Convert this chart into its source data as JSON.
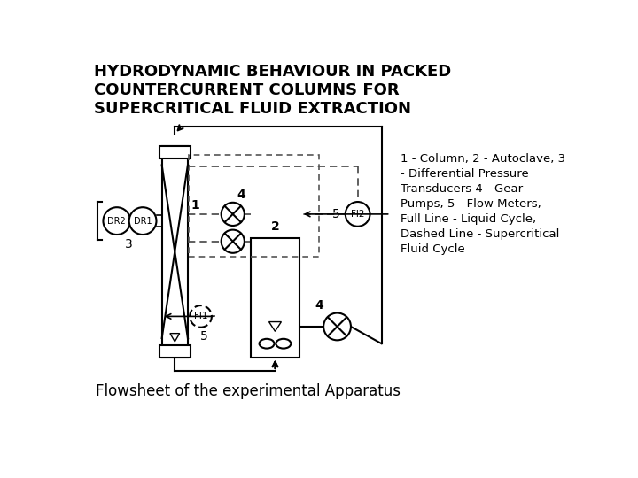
{
  "title": "HYDRODYNAMIC BEHAVIOUR IN PACKED\nCOUNTERCURRENT COLUMNS FOR\nSUPERCRITICAL FLUID EXTRACTION",
  "subtitle": "Flowsheet of the experimental Apparatus",
  "legend_text": "1 - Column, 2 - Autoclave, 3\n- Differential Pressure\nTransducers 4 - Gear\nPumps, 5 - Flow Meters,\nFull Line - Liquid Cycle,\nDashed Line - Supercritical\nFluid Cycle",
  "bg_color": "#ffffff",
  "line_color": "#000000",
  "title_fontsize": 13,
  "subtitle_fontsize": 12,
  "legend_fontsize": 9.5
}
